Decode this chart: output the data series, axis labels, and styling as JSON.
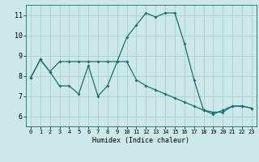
{
  "title": "",
  "xlabel": "Humidex (Indice chaleur)",
  "xlim": [
    -0.5,
    23.5
  ],
  "ylim": [
    5.5,
    11.5
  ],
  "yticks": [
    6,
    7,
    8,
    9,
    10,
    11
  ],
  "xticks": [
    0,
    1,
    2,
    3,
    4,
    5,
    6,
    7,
    8,
    9,
    10,
    11,
    12,
    13,
    14,
    15,
    16,
    17,
    18,
    19,
    20,
    21,
    22,
    23
  ],
  "bg_color": "#cce8e8",
  "grid_color": "#aad0d0",
  "line_color": "#1a7070",
  "series1_x": [
    0,
    1,
    2,
    3,
    4,
    5,
    6,
    7,
    8,
    9,
    10,
    11,
    12,
    13,
    14,
    15,
    16,
    17,
    18,
    19,
    20,
    21,
    22,
    23
  ],
  "series1_y": [
    7.9,
    8.8,
    8.2,
    7.5,
    7.5,
    7.1,
    8.5,
    7.0,
    7.5,
    8.7,
    9.9,
    10.5,
    11.1,
    10.9,
    11.1,
    11.1,
    9.6,
    7.8,
    6.3,
    6.2,
    6.2,
    6.5,
    6.5,
    6.4
  ],
  "series2_x": [
    0,
    1,
    2,
    3,
    4,
    5,
    6,
    7,
    8,
    9,
    10,
    11,
    12,
    13,
    14,
    15,
    16,
    17,
    18,
    19,
    20,
    21,
    22,
    23
  ],
  "series2_y": [
    7.9,
    8.8,
    8.2,
    8.7,
    8.7,
    8.7,
    8.7,
    8.7,
    8.7,
    8.7,
    8.7,
    7.8,
    7.5,
    7.3,
    7.1,
    6.9,
    6.7,
    6.5,
    6.3,
    6.1,
    6.3,
    6.5,
    6.5,
    6.4
  ]
}
